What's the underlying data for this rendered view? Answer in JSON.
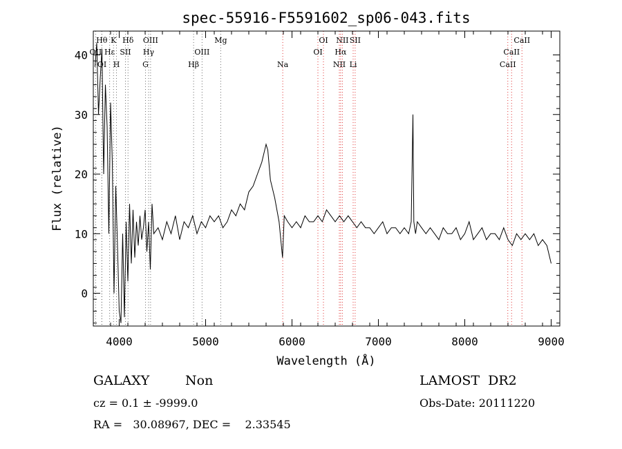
{
  "chart_data": {
    "type": "line",
    "title": "spec-55916-F5591602_sp06-043.fits",
    "xlabel": "Wavelength (Å)",
    "ylabel": "Flux (relative)",
    "xlim": [
      3700,
      9100
    ],
    "ylim": [
      -5.5,
      44
    ],
    "xticks": [
      4000,
      5000,
      6000,
      7000,
      8000,
      9000
    ],
    "yticks": [
      0,
      10,
      20,
      30,
      40
    ],
    "grid": false,
    "series": [
      {
        "x": [
          3720,
          3740,
          3760,
          3780,
          3800,
          3820,
          3840,
          3860,
          3880,
          3900,
          3920,
          3940,
          3960,
          3980,
          4000,
          4020,
          4040,
          4060,
          4080,
          4100,
          4120,
          4140,
          4160,
          4180,
          4200,
          4220,
          4240,
          4260,
          4280,
          4300,
          4320,
          4340,
          4360,
          4380,
          4400,
          4450,
          4500,
          4550,
          4600,
          4650,
          4700,
          4750,
          4800,
          4850,
          4900,
          4950,
          5000,
          5050,
          5100,
          5150,
          5200,
          5250,
          5300,
          5350,
          5400,
          5450,
          5500,
          5550,
          5600,
          5650,
          5700,
          5720,
          5750,
          5800,
          5850,
          5870,
          5890,
          5910,
          5950,
          6000,
          6050,
          6100,
          6150,
          6200,
          6250,
          6300,
          6350,
          6400,
          6450,
          6500,
          6550,
          6600,
          6650,
          6700,
          6750,
          6800,
          6850,
          6900,
          6950,
          7000,
          7050,
          7100,
          7150,
          7200,
          7250,
          7300,
          7350,
          7380,
          7400,
          7410,
          7420,
          7430,
          7450,
          7500,
          7550,
          7600,
          7650,
          7700,
          7750,
          7800,
          7850,
          7900,
          7950,
          8000,
          8050,
          8100,
          8150,
          8200,
          8250,
          8300,
          8350,
          8400,
          8450,
          8500,
          8550,
          8600,
          8650,
          8700,
          8750,
          8800,
          8850,
          8900,
          8950,
          9000
        ],
        "y": [
          38,
          42,
          30,
          36,
          41,
          20,
          35,
          28,
          10,
          32,
          22,
          0,
          18,
          8,
          -3,
          -5,
          10,
          -4,
          12,
          2,
          15,
          5,
          14,
          6,
          12,
          8,
          13,
          9,
          11,
          14,
          7,
          12,
          4,
          15,
          10,
          11,
          9,
          12,
          10,
          13,
          9,
          12,
          11,
          13,
          10,
          12,
          11,
          13,
          12,
          13,
          11,
          12,
          14,
          13,
          15,
          14,
          17,
          18,
          20,
          22,
          25,
          24,
          19,
          16,
          12,
          9,
          6,
          13,
          12,
          11,
          12,
          11,
          13,
          12,
          12,
          13,
          12,
          14,
          13,
          12,
          13,
          12,
          13,
          12,
          11,
          12,
          11,
          11,
          10,
          11,
          12,
          10,
          11,
          11,
          10,
          11,
          10,
          12,
          30,
          12,
          11,
          10,
          12,
          11,
          10,
          11,
          10,
          9,
          11,
          10,
          10,
          11,
          9,
          10,
          12,
          9,
          10,
          11,
          9,
          10,
          10,
          9,
          11,
          9,
          8,
          10,
          9,
          10,
          9,
          10,
          8,
          9,
          8,
          5
        ]
      }
    ],
    "lines": [
      {
        "label": "Hθ",
        "x": 3798,
        "row": 1,
        "color": "#6c6c6c"
      },
      {
        "label": "K",
        "x": 3934,
        "row": 1,
        "color": "#6c6c6c"
      },
      {
        "label": "Hδ",
        "x": 4102,
        "row": 1,
        "color": "#6c6c6c"
      },
      {
        "label": "OIII",
        "x": 4363,
        "row": 1,
        "color": "#6c6c6c"
      },
      {
        "label": "Mg",
        "x": 5175,
        "row": 1,
        "color": "#6c6c6c"
      },
      {
        "label": "OI",
        "x": 6364,
        "row": 1,
        "color": "#e03030"
      },
      {
        "label": "NII",
        "x": 6583,
        "row": 1,
        "color": "#e03030"
      },
      {
        "label": "SII",
        "x": 6731,
        "row": 1,
        "color": "#e03030"
      },
      {
        "label": "CaII",
        "x": 8662,
        "row": 1,
        "color": "#e03030"
      },
      {
        "label": "OII",
        "x": 3727,
        "row": 2,
        "color": "#6c6c6c"
      },
      {
        "label": "Hε",
        "x": 3889,
        "row": 2,
        "color": "#6c6c6c"
      },
      {
        "label": "SII",
        "x": 4072,
        "row": 2,
        "color": "#6c6c6c"
      },
      {
        "label": "Hγ",
        "x": 4340,
        "row": 2,
        "color": "#6c6c6c"
      },
      {
        "label": "OIII",
        "x": 4959,
        "row": 2,
        "color": "#6c6c6c"
      },
      {
        "label": "OI",
        "x": 6300,
        "row": 2,
        "color": "#e03030"
      },
      {
        "label": "Hα",
        "x": 6563,
        "row": 2,
        "color": "#e03030"
      },
      {
        "label": "CaII",
        "x": 8542,
        "row": 2,
        "color": "#e03030"
      },
      {
        "label": "OI",
        "x": 3800,
        "row": 3,
        "color": "#6c6c6c"
      },
      {
        "label": "H",
        "x": 3968,
        "row": 3,
        "color": "#6c6c6c"
      },
      {
        "label": "G",
        "x": 4304,
        "row": 3,
        "color": "#6c6c6c"
      },
      {
        "label": "Hβ",
        "x": 4861,
        "row": 3,
        "color": "#6c6c6c"
      },
      {
        "label": "Na",
        "x": 5893,
        "row": 3,
        "color": "#e03030"
      },
      {
        "label": "NII",
        "x": 6548,
        "row": 3,
        "color": "#e03030"
      },
      {
        "label": "Li",
        "x": 6708,
        "row": 3,
        "color": "#e03030"
      },
      {
        "label": "CaII",
        "x": 8498,
        "row": 3,
        "color": "#e03030"
      }
    ]
  },
  "info": {
    "object_class": "GALAXY",
    "subclass": "Non",
    "survey": "LAMOST  DR2",
    "cz": "cz = 0.1 ± -9999.0",
    "obs_date": "Obs-Date: 20111220",
    "radec": "RA =   30.08967, DEC =    2.33545"
  }
}
